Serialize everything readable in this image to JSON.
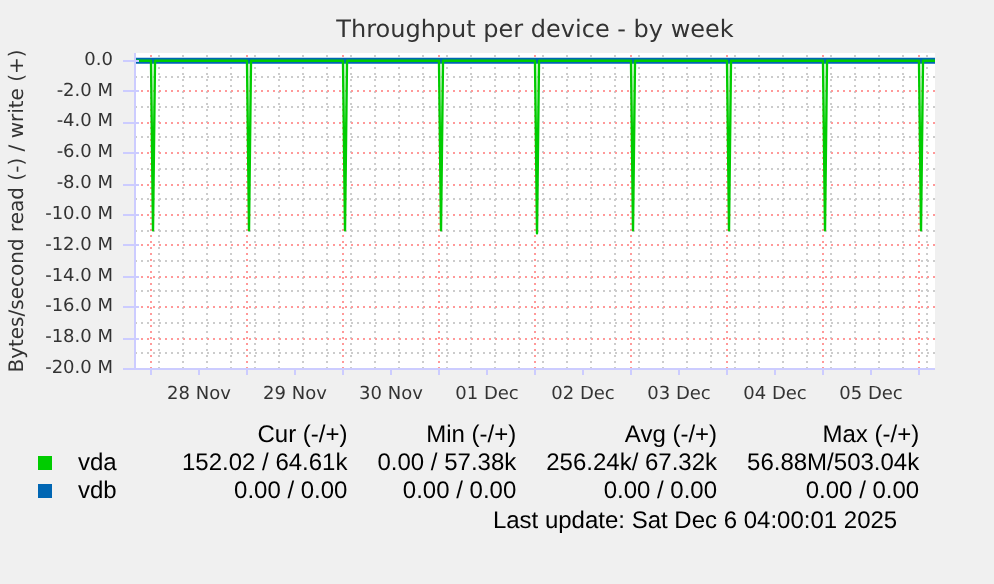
{
  "chart_data": {
    "type": "line",
    "title": "Throughput per device - by week",
    "ylabel": "Bytes/second read (-) / write (+)",
    "xlim": [
      "2025-11-27T20:00",
      "2025-12-06T04:00"
    ],
    "xticks": [
      {
        "value": "2025-11-28T00:00",
        "label": null
      },
      {
        "value": "2025-11-28T12:00",
        "label": "28 Nov"
      },
      {
        "value": "2025-11-29T00:00",
        "label": null
      },
      {
        "value": "2025-11-29T12:00",
        "label": "29 Nov"
      },
      {
        "value": "2025-11-30T00:00",
        "label": null
      },
      {
        "value": "2025-11-30T12:00",
        "label": "30 Nov"
      },
      {
        "value": "2025-12-01T00:00",
        "label": null
      },
      {
        "value": "2025-12-01T12:00",
        "label": "01 Dec"
      },
      {
        "value": "2025-12-02T00:00",
        "label": null
      },
      {
        "value": "2025-12-02T12:00",
        "label": "02 Dec"
      },
      {
        "value": "2025-12-03T00:00",
        "label": null
      },
      {
        "value": "2025-12-03T12:00",
        "label": "03 Dec"
      },
      {
        "value": "2025-12-04T00:00",
        "label": null
      },
      {
        "value": "2025-12-04T12:00",
        "label": "04 Dec"
      },
      {
        "value": "2025-12-05T00:00",
        "label": null
      },
      {
        "value": "2025-12-05T12:00",
        "label": "05 Dec"
      },
      {
        "value": "2025-12-06T00:00",
        "label": null
      }
    ],
    "ylim": [
      -20000000,
      500000
    ],
    "yticks": [
      {
        "value": 0,
        "label": "0.0"
      },
      {
        "value": -2000000,
        "label": "-2.0 M"
      },
      {
        "value": -4000000,
        "label": "-4.0 M"
      },
      {
        "value": -6000000,
        "label": "-6.0 M"
      },
      {
        "value": -8000000,
        "label": "-8.0 M"
      },
      {
        "value": -10000000,
        "label": "-10.0 M"
      },
      {
        "value": -12000000,
        "label": "-12.0 M"
      },
      {
        "value": -14000000,
        "label": "-14.0 M"
      },
      {
        "value": -16000000,
        "label": "-16.0 M"
      },
      {
        "value": -18000000,
        "label": "-18.0 M"
      },
      {
        "value": -20000000,
        "label": "-20.0 M"
      }
    ],
    "grid": true,
    "legend": "bottom",
    "marker": "none",
    "line_style": "solid",
    "x": [
      "2025-11-27T20:00",
      "2025-11-28T00:00",
      "2025-11-28T00:30",
      "2025-11-28T01:00",
      "2025-11-29T00:00",
      "2025-11-29T00:30",
      "2025-11-29T01:00",
      "2025-11-30T00:00",
      "2025-11-30T00:30",
      "2025-11-30T01:00",
      "2025-12-01T00:00",
      "2025-12-01T00:30",
      "2025-12-01T01:00",
      "2025-12-02T00:00",
      "2025-12-02T00:30",
      "2025-12-02T01:00",
      "2025-12-03T00:00",
      "2025-12-03T00:30",
      "2025-12-03T01:00",
      "2025-12-04T00:00",
      "2025-12-04T00:30",
      "2025-12-04T01:00",
      "2025-12-05T00:00",
      "2025-12-05T00:30",
      "2025-12-05T01:00",
      "2025-12-06T00:00",
      "2025-12-06T00:30",
      "2025-12-06T01:00",
      "2025-12-06T04:00"
    ],
    "series": [
      {
        "name": "vdb",
        "color": "#0066b3",
        "values": [
          0,
          0,
          0,
          0,
          0,
          0,
          0,
          0,
          0,
          0,
          0,
          0,
          0,
          0,
          0,
          0,
          0,
          0,
          0,
          0,
          0,
          0,
          0,
          0,
          0,
          0,
          0,
          0,
          0
        ]
      },
      {
        "name": "vda",
        "color": "#00cc00",
        "values": [
          0,
          0,
          -11000000,
          0,
          0,
          -11000000,
          0,
          0,
          -11000000,
          0,
          0,
          -11000000,
          0,
          0,
          -11200000,
          0,
          0,
          -11000000,
          0,
          0,
          -11000000,
          0,
          0,
          -11000000,
          0,
          0,
          -11000000,
          0,
          0
        ]
      }
    ],
    "annotations": [
      "Cur (-/+)",
      "Min (-/+)",
      "Avg (-/+)",
      "Max (-/+)",
      "152.02 / 64.61k",
      "0.00 / 57.38k",
      "256.24k/ 67.32k",
      "56.88M/503.04k",
      "0.00 /  0.00",
      "0.00 /  0.00",
      "0.00 /  0.00",
      "0.00 /  0.00",
      "Last update:  Sat Dec  6 04:00:01 2025"
    ]
  }
}
